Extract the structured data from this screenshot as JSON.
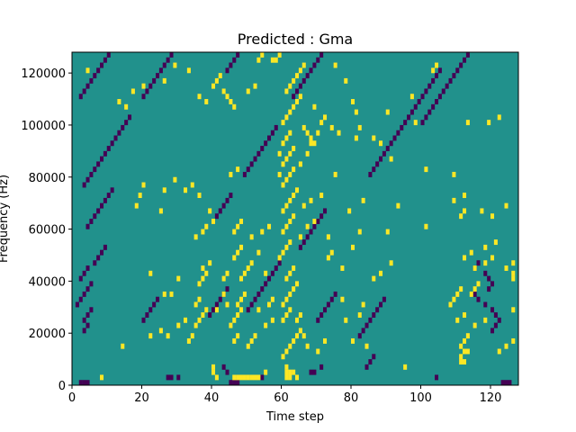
{
  "chart_data": {
    "type": "heatmap",
    "title": "Predicted : Gma",
    "xlabel": "Time step",
    "ylabel": "Frequency (Hz)",
    "xlim": [
      0,
      128
    ],
    "ylim": [
      0,
      128000
    ],
    "x_ticks": [
      0,
      20,
      40,
      60,
      80,
      100,
      120
    ],
    "y_ticks": [
      0,
      20000,
      40000,
      60000,
      80000,
      100000,
      120000
    ],
    "grid": false,
    "colormap": "viridis",
    "colors": {
      "low": "#440154",
      "mid": "#21918c",
      "high": "#fde725"
    },
    "n_cols": 128,
    "n_rows": 64,
    "background_value": "mid",
    "high_cells": [
      [
        8,
        1
      ],
      [
        46,
        1
      ],
      [
        47,
        1
      ],
      [
        48,
        1
      ],
      [
        49,
        1
      ],
      [
        50,
        1
      ],
      [
        51,
        1
      ],
      [
        52,
        1
      ],
      [
        53,
        1
      ],
      [
        41,
        1
      ],
      [
        40,
        2
      ],
      [
        40,
        3
      ],
      [
        55,
        2
      ],
      [
        61,
        1
      ],
      [
        61,
        2
      ],
      [
        61,
        3
      ],
      [
        62,
        1
      ],
      [
        62,
        2
      ],
      [
        63,
        2
      ],
      [
        64,
        1
      ],
      [
        95,
        3
      ],
      [
        111,
        4
      ],
      [
        112,
        4
      ],
      [
        111,
        5
      ],
      [
        112,
        6
      ],
      [
        113,
        6
      ],
      [
        33,
        8
      ],
      [
        34,
        9
      ],
      [
        46,
        8
      ],
      [
        47,
        9
      ],
      [
        50,
        7
      ],
      [
        51,
        8
      ],
      [
        52,
        9
      ],
      [
        60,
        5
      ],
      [
        61,
        6
      ],
      [
        62,
        7
      ],
      [
        63,
        8
      ],
      [
        64,
        9
      ],
      [
        65,
        10
      ],
      [
        66,
        9
      ],
      [
        67,
        7
      ],
      [
        70,
        6
      ],
      [
        72,
        8
      ],
      [
        80,
        8
      ],
      [
        84,
        7
      ],
      [
        111,
        7
      ],
      [
        112,
        8
      ],
      [
        113,
        9
      ],
      [
        122,
        6
      ],
      [
        124,
        7
      ],
      [
        126,
        8
      ],
      [
        14,
        7
      ],
      [
        22,
        9
      ],
      [
        25,
        10
      ],
      [
        27,
        9
      ],
      [
        30,
        11
      ],
      [
        32,
        12
      ],
      [
        35,
        11
      ],
      [
        36,
        12
      ],
      [
        37,
        13
      ],
      [
        38,
        14
      ],
      [
        41,
        14
      ],
      [
        45,
        11
      ],
      [
        46,
        12
      ],
      [
        47,
        13
      ],
      [
        48,
        14
      ],
      [
        55,
        11
      ],
      [
        57,
        12
      ],
      [
        60,
        12
      ],
      [
        61,
        13
      ],
      [
        62,
        14
      ],
      [
        64,
        12
      ],
      [
        65,
        13
      ],
      [
        78,
        12
      ],
      [
        82,
        13
      ],
      [
        110,
        12
      ],
      [
        112,
        13
      ],
      [
        115,
        11
      ],
      [
        118,
        12
      ],
      [
        126,
        14
      ],
      [
        35,
        15
      ],
      [
        36,
        16
      ],
      [
        26,
        17
      ],
      [
        28,
        17
      ],
      [
        44,
        15
      ],
      [
        43,
        17
      ],
      [
        47,
        15
      ],
      [
        48,
        16
      ],
      [
        49,
        17
      ],
      [
        53,
        14
      ],
      [
        56,
        15
      ],
      [
        57,
        16
      ],
      [
        60,
        15
      ],
      [
        61,
        16
      ],
      [
        62,
        17
      ],
      [
        63,
        18
      ],
      [
        64,
        19
      ],
      [
        77,
        16
      ],
      [
        83,
        15
      ],
      [
        108,
        15
      ],
      [
        109,
        16
      ],
      [
        110,
        17
      ],
      [
        111,
        18
      ],
      [
        114,
        17
      ],
      [
        115,
        18
      ],
      [
        116,
        19
      ],
      [
        22,
        21
      ],
      [
        30,
        20
      ],
      [
        36,
        19
      ],
      [
        37,
        20
      ],
      [
        38,
        21
      ],
      [
        43,
        20
      ],
      [
        44,
        21
      ],
      [
        48,
        20
      ],
      [
        49,
        21
      ],
      [
        50,
        22
      ],
      [
        51,
        23
      ],
      [
        55,
        21
      ],
      [
        61,
        20
      ],
      [
        62,
        21
      ],
      [
        63,
        22
      ],
      [
        86,
        20
      ],
      [
        88,
        21
      ],
      [
        115,
        22
      ],
      [
        118,
        23
      ],
      [
        120,
        24
      ],
      [
        124,
        22
      ],
      [
        126,
        23
      ],
      [
        126,
        20
      ],
      [
        126,
        21
      ],
      [
        37,
        22
      ],
      [
        39,
        23
      ],
      [
        46,
        24
      ],
      [
        47,
        25
      ],
      [
        48,
        26
      ],
      [
        53,
        25
      ],
      [
        59,
        24
      ],
      [
        60,
        25
      ],
      [
        61,
        26
      ],
      [
        62,
        27
      ],
      [
        73,
        24
      ],
      [
        74,
        25
      ],
      [
        77,
        22
      ],
      [
        80,
        26
      ],
      [
        91,
        23
      ],
      [
        112,
        24
      ],
      [
        114,
        25
      ],
      [
        118,
        26
      ],
      [
        121,
        27
      ],
      [
        35,
        28
      ],
      [
        37,
        29
      ],
      [
        38,
        30
      ],
      [
        40,
        31
      ],
      [
        46,
        29
      ],
      [
        47,
        30
      ],
      [
        48,
        31
      ],
      [
        51,
        28
      ],
      [
        54,
        29
      ],
      [
        56,
        30
      ],
      [
        60,
        29
      ],
      [
        61,
        30
      ],
      [
        62,
        31
      ],
      [
        63,
        32
      ],
      [
        65,
        28
      ],
      [
        67,
        30
      ],
      [
        69,
        31
      ],
      [
        73,
        28
      ],
      [
        82,
        29
      ],
      [
        90,
        29
      ],
      [
        101,
        30
      ],
      [
        111,
        32
      ],
      [
        112,
        33
      ],
      [
        117,
        33
      ],
      [
        120,
        32
      ],
      [
        124,
        34
      ],
      [
        18,
        34
      ],
      [
        25,
        33
      ],
      [
        39,
        33
      ],
      [
        60,
        33
      ],
      [
        61,
        34
      ],
      [
        62,
        35
      ],
      [
        63,
        36
      ],
      [
        64,
        37
      ],
      [
        60,
        38
      ],
      [
        61,
        39
      ],
      [
        62,
        40
      ],
      [
        63,
        41
      ],
      [
        60,
        42
      ],
      [
        61,
        43
      ],
      [
        62,
        44
      ],
      [
        63,
        45
      ],
      [
        66,
        34
      ],
      [
        68,
        35
      ],
      [
        71,
        36
      ],
      [
        79,
        33
      ],
      [
        83,
        35
      ],
      [
        93,
        34
      ],
      [
        109,
        35
      ],
      [
        112,
        36
      ],
      [
        19,
        36
      ],
      [
        20,
        38
      ],
      [
        26,
        37
      ],
      [
        29,
        39
      ],
      [
        32,
        37
      ],
      [
        34,
        38
      ],
      [
        36,
        36
      ],
      [
        45,
        40
      ],
      [
        47,
        41
      ],
      [
        59,
        40
      ],
      [
        59,
        44
      ],
      [
        60,
        46
      ],
      [
        61,
        47
      ],
      [
        62,
        48
      ],
      [
        65,
        42
      ],
      [
        67,
        44
      ],
      [
        68,
        46
      ],
      [
        70,
        48
      ],
      [
        71,
        50
      ],
      [
        75,
        40
      ],
      [
        81,
        47
      ],
      [
        82,
        49
      ],
      [
        91,
        43
      ],
      [
        101,
        41
      ],
      [
        109,
        40
      ],
      [
        60,
        50
      ],
      [
        61,
        51
      ],
      [
        62,
        52
      ],
      [
        63,
        53
      ],
      [
        64,
        54
      ],
      [
        65,
        55
      ],
      [
        66,
        49
      ],
      [
        67,
        48
      ],
      [
        68,
        47
      ],
      [
        69,
        46
      ],
      [
        61,
        56
      ],
      [
        62,
        57
      ],
      [
        63,
        58
      ],
      [
        64,
        59
      ],
      [
        65,
        60
      ],
      [
        66,
        61
      ],
      [
        53,
        62
      ],
      [
        54,
        63
      ],
      [
        57,
        62
      ],
      [
        75,
        61
      ],
      [
        78,
        58
      ],
      [
        80,
        54
      ],
      [
        81,
        52
      ],
      [
        90,
        52
      ],
      [
        97,
        55
      ],
      [
        103,
        60
      ],
      [
        104,
        61
      ],
      [
        113,
        50
      ],
      [
        119,
        50
      ],
      [
        122,
        51
      ],
      [
        4,
        60
      ],
      [
        13,
        54
      ],
      [
        15,
        53
      ],
      [
        17,
        56
      ],
      [
        20,
        57
      ],
      [
        26,
        58
      ],
      [
        29,
        61
      ],
      [
        33,
        60
      ],
      [
        36,
        55
      ],
      [
        38,
        54
      ],
      [
        40,
        57
      ],
      [
        41,
        58
      ],
      [
        42,
        59
      ],
      [
        43,
        56
      ],
      [
        44,
        55
      ],
      [
        45,
        54
      ],
      [
        46,
        53
      ],
      [
        50,
        56
      ],
      [
        52,
        57
      ],
      [
        58,
        62
      ],
      [
        59,
        63
      ],
      [
        69,
        53
      ],
      [
        72,
        51
      ],
      [
        74,
        49
      ],
      [
        76,
        48
      ],
      [
        86,
        47
      ],
      [
        88,
        46
      ],
      [
        98,
        50
      ]
    ],
    "low_cells": [
      [
        2,
        0
      ],
      [
        3,
        0
      ],
      [
        4,
        0
      ],
      [
        45,
        0
      ],
      [
        46,
        0
      ],
      [
        47,
        0
      ],
      [
        27,
        1
      ],
      [
        28,
        1
      ],
      [
        30,
        1
      ],
      [
        44,
        2
      ],
      [
        43,
        3
      ],
      [
        54,
        1
      ],
      [
        68,
        2
      ],
      [
        69,
        2
      ],
      [
        71,
        3
      ],
      [
        84,
        3
      ],
      [
        85,
        4
      ],
      [
        86,
        5
      ],
      [
        104,
        1
      ],
      [
        123,
        0
      ],
      [
        124,
        0
      ],
      [
        125,
        0
      ],
      [
        3,
        10
      ],
      [
        4,
        11
      ],
      [
        3,
        12
      ],
      [
        4,
        13
      ],
      [
        5,
        14
      ],
      [
        1,
        15
      ],
      [
        2,
        16
      ],
      [
        3,
        17
      ],
      [
        4,
        18
      ],
      [
        5,
        19
      ],
      [
        2,
        20
      ],
      [
        3,
        21
      ],
      [
        4,
        22
      ],
      [
        6,
        23
      ],
      [
        7,
        24
      ],
      [
        8,
        25
      ],
      [
        9,
        26
      ],
      [
        20,
        12
      ],
      [
        21,
        13
      ],
      [
        22,
        14
      ],
      [
        23,
        15
      ],
      [
        24,
        16
      ],
      [
        39,
        13
      ],
      [
        40,
        14
      ],
      [
        41,
        15
      ],
      [
        42,
        16
      ],
      [
        43,
        17
      ],
      [
        44,
        18
      ],
      [
        50,
        14
      ],
      [
        51,
        15
      ],
      [
        52,
        16
      ],
      [
        53,
        17
      ],
      [
        54,
        18
      ],
      [
        55,
        19
      ],
      [
        56,
        20
      ],
      [
        57,
        21
      ],
      [
        58,
        22
      ],
      [
        59,
        23
      ],
      [
        70,
        12
      ],
      [
        71,
        13
      ],
      [
        72,
        14
      ],
      [
        73,
        15
      ],
      [
        74,
        16
      ],
      [
        75,
        17
      ],
      [
        82,
        9
      ],
      [
        83,
        10
      ],
      [
        84,
        11
      ],
      [
        85,
        12
      ],
      [
        86,
        13
      ],
      [
        87,
        14
      ],
      [
        88,
        15
      ],
      [
        89,
        16
      ],
      [
        120,
        10
      ],
      [
        121,
        11
      ],
      [
        122,
        12
      ],
      [
        121,
        13
      ],
      [
        120,
        14
      ],
      [
        118,
        15
      ],
      [
        116,
        16
      ],
      [
        115,
        17
      ],
      [
        119,
        18
      ],
      [
        120,
        19
      ],
      [
        119,
        20
      ],
      [
        118,
        21
      ],
      [
        115,
        22
      ],
      [
        116,
        23
      ],
      [
        4,
        30
      ],
      [
        5,
        31
      ],
      [
        6,
        32
      ],
      [
        7,
        33
      ],
      [
        8,
        34
      ],
      [
        9,
        35
      ],
      [
        10,
        36
      ],
      [
        11,
        37
      ],
      [
        3,
        38
      ],
      [
        4,
        39
      ],
      [
        5,
        40
      ],
      [
        6,
        41
      ],
      [
        7,
        42
      ],
      [
        8,
        43
      ],
      [
        9,
        44
      ],
      [
        10,
        45
      ],
      [
        11,
        46
      ],
      [
        12,
        47
      ],
      [
        13,
        48
      ],
      [
        14,
        49
      ],
      [
        15,
        50
      ],
      [
        16,
        51
      ],
      [
        40,
        31
      ],
      [
        41,
        32
      ],
      [
        42,
        33
      ],
      [
        43,
        34
      ],
      [
        44,
        35
      ],
      [
        45,
        36
      ],
      [
        49,
        40
      ],
      [
        50,
        41
      ],
      [
        51,
        42
      ],
      [
        52,
        43
      ],
      [
        53,
        44
      ],
      [
        54,
        45
      ],
      [
        55,
        46
      ],
      [
        56,
        47
      ],
      [
        57,
        48
      ],
      [
        58,
        49
      ],
      [
        65,
        26
      ],
      [
        66,
        27
      ],
      [
        67,
        28
      ],
      [
        68,
        29
      ],
      [
        69,
        30
      ],
      [
        70,
        31
      ],
      [
        71,
        32
      ],
      [
        72,
        33
      ],
      [
        85,
        40
      ],
      [
        86,
        41
      ],
      [
        87,
        42
      ],
      [
        88,
        43
      ],
      [
        89,
        44
      ],
      [
        90,
        45
      ],
      [
        91,
        46
      ],
      [
        92,
        47
      ],
      [
        93,
        48
      ],
      [
        94,
        49
      ],
      [
        95,
        50
      ],
      [
        96,
        51
      ],
      [
        97,
        52
      ],
      [
        98,
        53
      ],
      [
        99,
        54
      ],
      [
        100,
        55
      ],
      [
        101,
        56
      ],
      [
        102,
        57
      ],
      [
        103,
        58
      ],
      [
        104,
        59
      ],
      [
        105,
        60
      ],
      [
        2,
        55
      ],
      [
        3,
        56
      ],
      [
        4,
        57
      ],
      [
        5,
        58
      ],
      [
        6,
        59
      ],
      [
        7,
        60
      ],
      [
        8,
        61
      ],
      [
        9,
        62
      ],
      [
        10,
        63
      ],
      [
        20,
        55
      ],
      [
        21,
        56
      ],
      [
        22,
        57
      ],
      [
        23,
        58
      ],
      [
        24,
        59
      ],
      [
        25,
        60
      ],
      [
        26,
        61
      ],
      [
        27,
        62
      ],
      [
        28,
        63
      ],
      [
        44,
        60
      ],
      [
        45,
        61
      ],
      [
        46,
        62
      ],
      [
        47,
        63
      ],
      [
        63,
        55
      ],
      [
        64,
        56
      ],
      [
        65,
        57
      ],
      [
        66,
        58
      ],
      [
        67,
        59
      ],
      [
        68,
        60
      ],
      [
        69,
        61
      ],
      [
        70,
        62
      ],
      [
        71,
        63
      ],
      [
        100,
        50
      ],
      [
        101,
        51
      ],
      [
        102,
        52
      ],
      [
        103,
        53
      ],
      [
        104,
        54
      ],
      [
        105,
        55
      ],
      [
        106,
        56
      ],
      [
        107,
        57
      ],
      [
        108,
        58
      ],
      [
        109,
        59
      ],
      [
        110,
        60
      ],
      [
        111,
        61
      ],
      [
        112,
        62
      ],
      [
        113,
        63
      ]
    ]
  }
}
